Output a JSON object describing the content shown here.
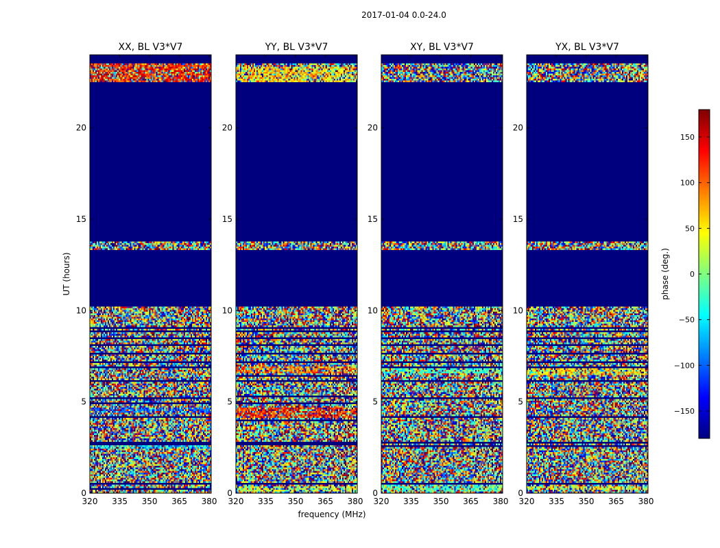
{
  "figure_title": "2017-01-04 0.0-24.0",
  "colors": {
    "masked": "#00007f",
    "axis": "#000000",
    "jet": [
      "#00007f",
      "#0000ff",
      "#007fff",
      "#00ffff",
      "#7fff7f",
      "#ffff00",
      "#ff7f00",
      "#ff0000",
      "#7f0000"
    ]
  },
  "chart_data": {
    "type": "heatmap",
    "description_free": true,
    "shared": {
      "xlabel": "frequency (MHz)",
      "ylabel": "UT (hours)",
      "xlim": [
        320,
        381
      ],
      "ylim": [
        0,
        24
      ],
      "xticks": [
        320,
        335,
        350,
        365,
        380
      ],
      "yticks": [
        0,
        5,
        10,
        15,
        20
      ],
      "x_tick_labels": [
        "320",
        "335",
        "350",
        "365",
        "380"
      ],
      "y_tick_labels": [
        "0",
        "5",
        "10",
        "15",
        "20"
      ]
    },
    "panels": [
      {
        "title": "XX, BL V3*V7",
        "noisy_bands": [
          [
            0.0,
            10.2
          ],
          [
            13.3,
            13.8
          ],
          [
            22.5,
            23.5
          ]
        ],
        "masked_rows": [
          0.25,
          0.55,
          2.65,
          2.75,
          4.2,
          4.9,
          5.2,
          6.1,
          6.85,
          7.2,
          7.65,
          8.1,
          8.5,
          8.9,
          9.05
        ],
        "bias_bands": [
          [
            22.5,
            23.5,
            0.85
          ],
          [
            2.4,
            2.6,
            0.35
          ],
          [
            4.4,
            4.7,
            0.2
          ]
        ]
      },
      {
        "title": "YY, BL V3*V7",
        "noisy_bands": [
          [
            0.0,
            10.2
          ],
          [
            13.3,
            13.8
          ],
          [
            22.5,
            23.5
          ]
        ],
        "masked_rows": [
          0.55,
          2.65,
          2.75,
          4.0,
          4.95,
          5.3,
          6.1,
          6.45,
          7.2,
          7.65,
          8.1,
          8.5,
          8.9,
          9.05
        ],
        "bias_bands": [
          [
            22.5,
            23.3,
            0.65
          ],
          [
            6.6,
            6.9,
            0.75
          ],
          [
            4.1,
            4.7,
            0.85
          ],
          [
            0.1,
            0.35,
            0.55
          ]
        ]
      },
      {
        "title": "XY, BL V3*V7",
        "noisy_bands": [
          [
            0.0,
            10.2
          ],
          [
            13.3,
            13.8
          ],
          [
            22.5,
            23.5
          ]
        ],
        "masked_rows": [
          0.55,
          2.6,
          2.75,
          4.15,
          5.2,
          6.1,
          6.85,
          7.2,
          7.65,
          8.1,
          8.5,
          8.9,
          9.05
        ],
        "bias_bands": [
          [
            0.1,
            0.6,
            0.45
          ],
          [
            6.6,
            6.9,
            0.45
          ]
        ]
      },
      {
        "title": "YX, BL V3*V7",
        "noisy_bands": [
          [
            0.0,
            10.2
          ],
          [
            13.3,
            13.8
          ],
          [
            22.5,
            23.5
          ]
        ],
        "masked_rows": [
          0.55,
          2.6,
          2.75,
          4.15,
          5.2,
          6.1,
          6.85,
          7.2,
          7.65,
          8.1,
          8.5,
          8.9,
          9.05
        ],
        "bias_bands": [
          [
            0.2,
            0.4,
            0.6
          ],
          [
            6.5,
            6.9,
            0.65
          ]
        ]
      }
    ],
    "colorbar": {
      "label": "phase (deg.)",
      "range": [
        -180,
        180
      ],
      "ticks": [
        150,
        100,
        50,
        0,
        -50,
        -100,
        -150
      ],
      "tick_labels": [
        "150",
        "100",
        "50",
        "0",
        "−50",
        "−100",
        "−150"
      ],
      "colormap": "jet"
    }
  }
}
